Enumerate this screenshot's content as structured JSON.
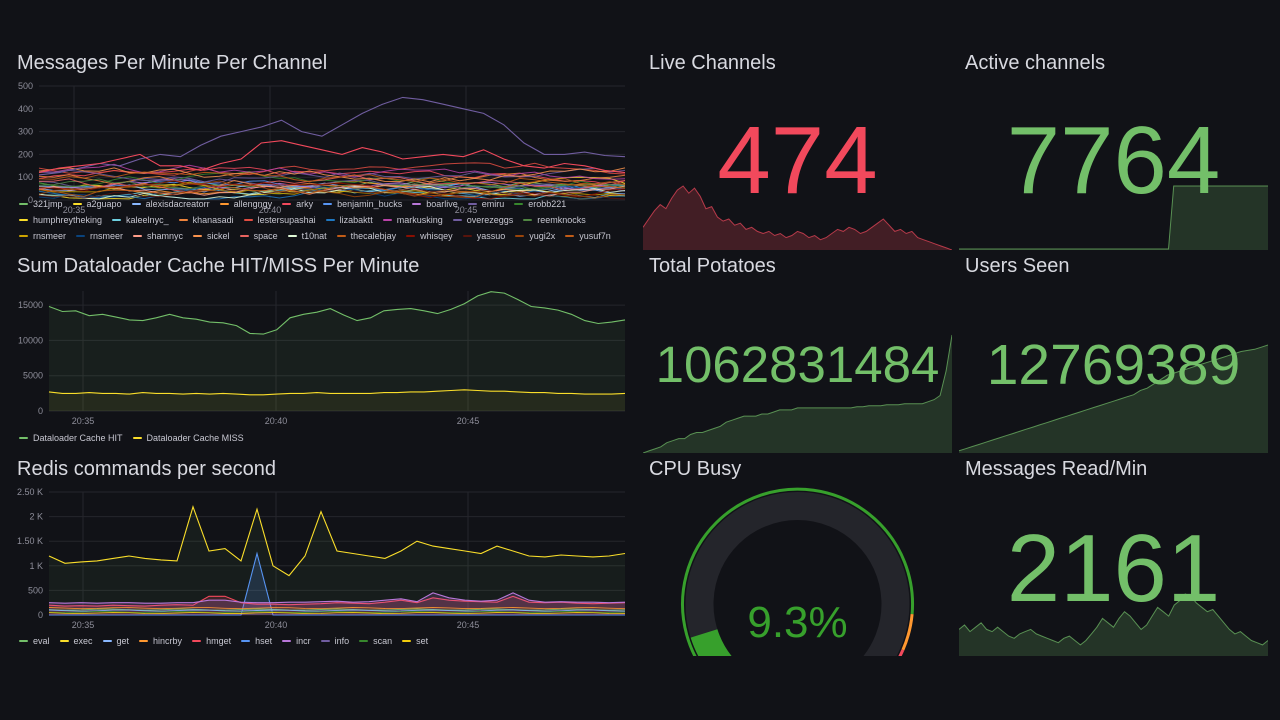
{
  "colors": {
    "background": "#111217",
    "green": "#73bf69",
    "red": "#f2495c",
    "yellow": "#fade2a",
    "grid": "#25262c"
  },
  "panels": {
    "messages_per_minute": {
      "title": "Messages Per Minute Per Channel",
      "legend": [
        {
          "name": "321jmp",
          "color": "#73bf69"
        },
        {
          "name": "a2guapo",
          "color": "#fade2a"
        },
        {
          "name": "alexisdacreatorr",
          "color": "#8ab8ff"
        },
        {
          "name": "allengngy",
          "color": "#ff9830"
        },
        {
          "name": "arky",
          "color": "#f2495c"
        },
        {
          "name": "benjamin_bucks",
          "color": "#5794f2"
        },
        {
          "name": "boarlive",
          "color": "#b877d9"
        },
        {
          "name": "emiru",
          "color": "#705da0"
        },
        {
          "name": "erobb221",
          "color": "#37872d"
        },
        {
          "name": "humphreytheking",
          "color": "#fade2a"
        },
        {
          "name": "kaleelnyc_",
          "color": "#6ed0e0"
        },
        {
          "name": "khanasadi",
          "color": "#ef843c"
        },
        {
          "name": "lestersupashai",
          "color": "#e24d42"
        },
        {
          "name": "lizabaktt",
          "color": "#1f78c1"
        },
        {
          "name": "markusking",
          "color": "#ba43a9"
        },
        {
          "name": "overezeggs",
          "color": "#705da0"
        },
        {
          "name": "reemknocks",
          "color": "#508642"
        },
        {
          "name": "rnsmeer",
          "color": "#cca300"
        },
        {
          "name": "rnsmeer",
          "color": "#0a437c"
        },
        {
          "name": "shamnyc",
          "color": "#ff9e8a"
        },
        {
          "name": "sickel",
          "color": "#f9934e"
        },
        {
          "name": "space",
          "color": "#ea6460"
        },
        {
          "name": "t10nat",
          "color": "#e0f9d7"
        },
        {
          "name": "thecalebjay",
          "color": "#c15c17"
        },
        {
          "name": "whisqey",
          "color": "#890f02"
        },
        {
          "name": "yassuo",
          "color": "#58140c"
        },
        {
          "name": "yugi2x",
          "color": "#99440a"
        },
        {
          "name": "yusuf7n",
          "color": "#c15c17"
        }
      ]
    },
    "dataloader": {
      "title": "Sum Dataloader Cache HIT/MISS Per Minute",
      "legend": [
        {
          "name": "Dataloader Cache HIT",
          "color": "#73bf69"
        },
        {
          "name": "Dataloader Cache MISS",
          "color": "#fade2a"
        }
      ]
    },
    "redis": {
      "title": "Redis commands per second",
      "legend": [
        {
          "name": "eval",
          "color": "#73bf69"
        },
        {
          "name": "exec",
          "color": "#fade2a"
        },
        {
          "name": "get",
          "color": "#8ab8ff"
        },
        {
          "name": "hincrby",
          "color": "#ff9830"
        },
        {
          "name": "hmget",
          "color": "#f2495c"
        },
        {
          "name": "hset",
          "color": "#5794f2"
        },
        {
          "name": "incr",
          "color": "#b877d9"
        },
        {
          "name": "info",
          "color": "#705da0"
        },
        {
          "name": "scan",
          "color": "#37872d"
        },
        {
          "name": "set",
          "color": "#f2cc0c"
        }
      ]
    },
    "live_channels": {
      "title": "Live Channels",
      "value": "474",
      "color": "#f2495c"
    },
    "active_channels": {
      "title": "Active channels",
      "value": "7764",
      "color": "#73bf69"
    },
    "total_potatoes": {
      "title": "Total Potatoes",
      "value": "1062831484",
      "color": "#73bf69"
    },
    "users_seen": {
      "title": "Users Seen",
      "value": "12769389",
      "color": "#73bf69"
    },
    "cpu_busy": {
      "title": "CPU Busy",
      "value": "9.3%",
      "percent": 9.3,
      "color": "#37a02c"
    },
    "messages_read": {
      "title": "Messages Read/Min",
      "value": "2161",
      "color": "#73bf69"
    }
  },
  "chart_data": [
    {
      "type": "line",
      "title": "Messages Per Minute Per Channel",
      "x_ticks": [
        "20:35",
        "20:40",
        "20:45"
      ],
      "y_ticks": [
        "0",
        "100",
        "200",
        "300",
        "400",
        "500"
      ],
      "ylim": [
        0,
        500
      ],
      "series_count": 28,
      "highlight_series": [
        {
          "name": "emiru",
          "values": [
            110,
            120,
            140,
            160,
            150,
            180,
            200,
            190,
            240,
            280,
            300,
            320,
            350,
            300,
            280,
            330,
            380,
            420,
            450,
            440,
            420,
            400,
            380,
            330,
            250,
            200,
            200,
            210,
            195,
            190
          ]
        },
        {
          "name": "lestersupashai",
          "values": [
            120,
            140,
            150,
            160,
            180,
            200,
            150,
            150,
            130,
            160,
            180,
            250,
            260,
            240,
            220,
            200,
            230,
            210,
            180,
            190,
            200,
            190,
            220,
            180,
            150,
            140,
            160,
            150,
            130,
            120
          ]
        }
      ]
    },
    {
      "type": "line",
      "title": "Sum Dataloader Cache HIT/MISS Per Minute",
      "x_ticks": [
        "20:35",
        "20:40",
        "20:45"
      ],
      "y_ticks": [
        "0",
        "5000",
        "10000",
        "15000"
      ],
      "ylim": [
        0,
        17000
      ],
      "series": [
        {
          "name": "Dataloader Cache HIT",
          "values": [
            14800,
            14100,
            14200,
            13500,
            13700,
            13300,
            12900,
            12800,
            13200,
            13700,
            13200,
            13000,
            12600,
            12500,
            12100,
            11000,
            10900,
            11500,
            13200,
            13700,
            14000,
            14500,
            13600,
            12800,
            13200,
            14200,
            14400,
            14500,
            14200,
            13800,
            14400,
            15200,
            16300,
            16900,
            16700,
            15800,
            14800,
            14600,
            14300,
            13700,
            12800,
            12400,
            12600,
            12900
          ]
        },
        {
          "name": "Dataloader Cache MISS",
          "values": [
            2700,
            2500,
            2500,
            2600,
            2500,
            2500,
            2400,
            2600,
            2500,
            2500,
            2400,
            2500,
            2400,
            2500,
            2400,
            2300,
            2300,
            2400,
            2500,
            2500,
            2600,
            2500,
            2500,
            2500,
            2500,
            2600,
            2600,
            2700,
            2700,
            2800,
            2900,
            3000,
            2900,
            2800,
            2800,
            2700,
            2600,
            2600,
            2500,
            2500,
            2400,
            2400,
            2400,
            2500
          ]
        }
      ]
    },
    {
      "type": "line",
      "title": "Redis commands per second",
      "x_ticks": [
        "20:35",
        "20:40",
        "20:45"
      ],
      "y_ticks": [
        "0",
        "500",
        "1 K",
        "1.50 K",
        "2 K",
        "2.50 K"
      ],
      "ylim": [
        0,
        2500
      ],
      "series": [
        {
          "name": "eval",
          "values": [
            1200,
            1050,
            1080,
            1100,
            1150,
            1200,
            1150,
            1120,
            1100,
            2200,
            1300,
            1350,
            1100,
            2150,
            1000,
            800,
            1200,
            2100,
            1300,
            1250,
            1200,
            1150,
            1300,
            1500,
            1400,
            1350,
            1300,
            1250,
            1400,
            1300,
            1200,
            1180,
            1220,
            1200,
            1180,
            1200,
            1250
          ]
        },
        {
          "name": "hset",
          "values": [
            0,
            0,
            0,
            0,
            0,
            0,
            0,
            0,
            0,
            0,
            0,
            0,
            0,
            1250,
            0,
            0,
            0,
            0,
            0,
            0,
            0,
            0,
            0,
            0,
            0,
            0,
            0,
            0,
            0,
            0,
            0,
            0,
            0,
            0,
            0,
            0,
            0
          ]
        },
        {
          "name": "hmget",
          "values": [
            200,
            180,
            190,
            180,
            200,
            190,
            180,
            200,
            210,
            200,
            380,
            380,
            250,
            220,
            220,
            210,
            220,
            230,
            250,
            240,
            230,
            260,
            300,
            250,
            350,
            300,
            280,
            270,
            260,
            380,
            260,
            250,
            260,
            240,
            230,
            240,
            250
          ]
        },
        {
          "name": "info",
          "values": [
            250,
            240,
            250,
            240,
            250,
            250,
            240,
            240,
            250,
            250,
            300,
            300,
            260,
            250,
            250,
            260,
            260,
            270,
            280,
            260,
            270,
            300,
            330,
            270,
            450,
            350,
            300,
            280,
            300,
            450,
            300,
            260,
            270,
            260,
            260,
            250,
            260
          ]
        }
      ]
    }
  ]
}
